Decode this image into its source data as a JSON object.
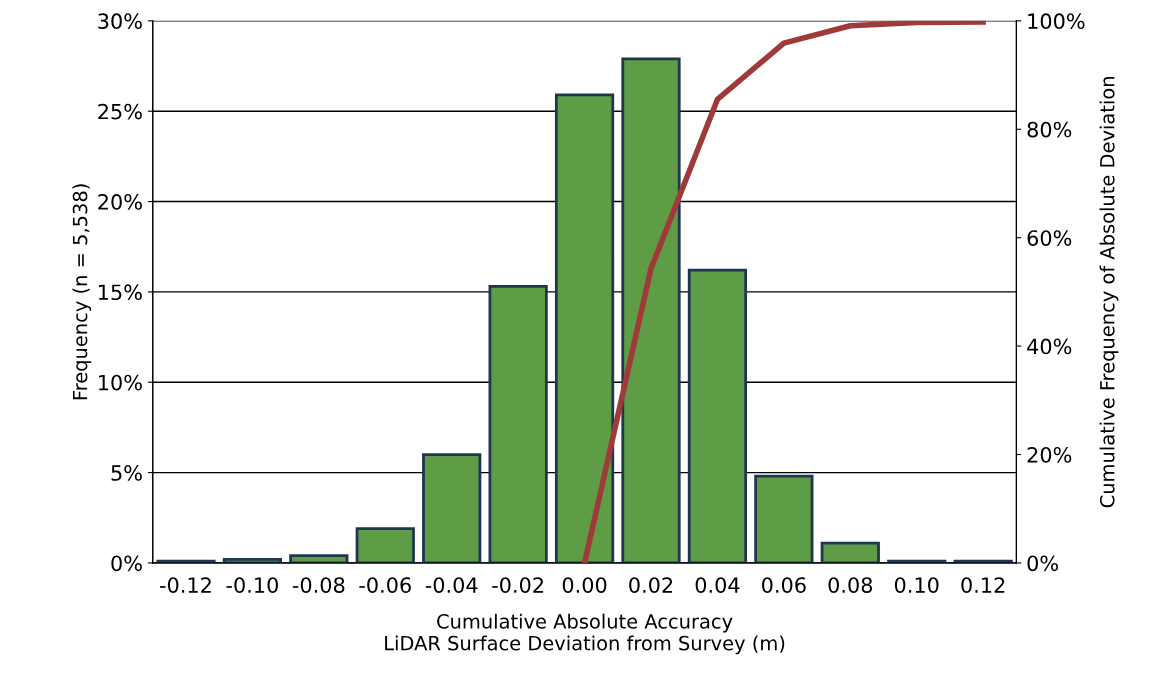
{
  "chart_data": {
    "type": "bar",
    "xlabel": "Cumulative Absolute Accuracy\nLiDAR Surface Deviation from Survey (m)",
    "ylabel": "Frequency (n = 5,538)",
    "y2label": "Cumulative Frequency of Absolute Deviation",
    "categories": [
      "-0.12",
      "-0.10",
      "-0.08",
      "-0.06",
      "-0.04",
      "-0.02",
      "0.00",
      "0.02",
      "0.04",
      "0.06",
      "0.08",
      "0.10",
      "0.12"
    ],
    "series": [
      {
        "color": "#5e9c45",
        "values": [
          0.1,
          0.2,
          0.4,
          1.9,
          6.0,
          15.3,
          25.9,
          27.9,
          16.2,
          4.8,
          1.1,
          0.1,
          0.1
        ]
      },
      {
        "type": "line",
        "axis": "y2",
        "color": "#a03a3a",
        "values": [
          null,
          null,
          null,
          null,
          null,
          null,
          0,
          54.3,
          85.5,
          95.9,
          99.1,
          99.7,
          99.8
        ]
      }
    ],
    "ylim": [
      0,
      30
    ],
    "yticks": [
      {
        "value": 0,
        "label": "0%"
      },
      {
        "value": 5,
        "label": "5%"
      },
      {
        "value": 10,
        "label": "10%"
      },
      {
        "value": 15,
        "label": "15%"
      },
      {
        "value": 20,
        "label": "20%"
      },
      {
        "value": 25,
        "label": "25%"
      },
      {
        "value": 30,
        "label": "30%"
      }
    ],
    "y2lim": [
      0,
      100
    ],
    "y2ticks": [
      {
        "value": 0,
        "label": "0%"
      },
      {
        "value": 20,
        "label": "20%"
      },
      {
        "value": 40,
        "label": "40%"
      },
      {
        "value": 60,
        "label": "60%"
      },
      {
        "value": 80,
        "label": "80%"
      },
      {
        "value": 100,
        "label": "100%"
      }
    ],
    "grid": "y",
    "line_style": "solid"
  }
}
